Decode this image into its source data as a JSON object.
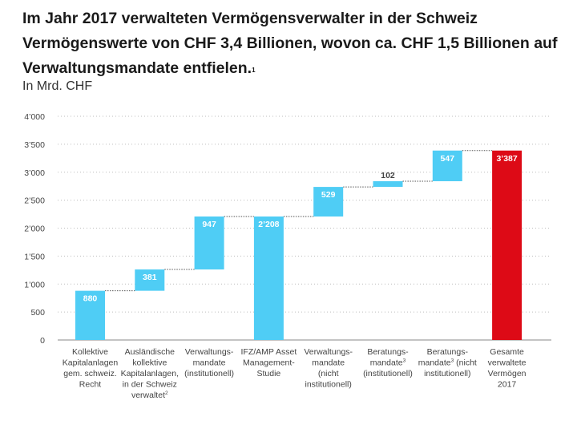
{
  "title": "Im Jahr 2017 verwalteten Vermögensverwalter in der Schweiz Vermögenswerte von CHF 3,4 Billionen, wovon ca. CHF 1,5 Billionen auf Verwaltungsmandate entfielen.",
  "title_footnote": "1",
  "subtitle": "In Mrd. CHF",
  "colors": {
    "bar": "#4fcdf5",
    "total": "#dd0a16",
    "grid": "#bdbdbd",
    "label_inside": "#ffffff",
    "label_outside": "#444444"
  },
  "chart_data": {
    "type": "bar",
    "subtype": "waterfall",
    "title": "",
    "xlabel": "",
    "ylabel": "In Mrd. CHF",
    "ylim": [
      0,
      4000
    ],
    "yticks": [
      0,
      500,
      1000,
      1500,
      2000,
      2500,
      3000,
      3500,
      4000
    ],
    "ytick_labels": [
      "0",
      "500",
      "1’000",
      "1’500",
      "2’000",
      "2’500",
      "3’000",
      "3’500",
      "4’000"
    ],
    "grid": true,
    "legend": "none",
    "categories": [
      [
        "Kollektive",
        "Kapitalanlagen",
        "gem. schweiz.",
        "Recht"
      ],
      [
        "Ausländische",
        "kollektive",
        "Kapitalanlagen,",
        "in der Schweiz",
        "verwaltet²"
      ],
      [
        "Verwaltungs-",
        "mandate",
        "(institutionell)"
      ],
      [
        "IFZ/AMP Asset",
        "Management-",
        "Studie"
      ],
      [
        "Verwaltungs-",
        "mandate",
        "(nicht",
        "institutionell)"
      ],
      [
        "Beratungs-",
        "mandate³",
        "(institutionell)"
      ],
      [
        "Beratungs-",
        "mandate³ (nicht",
        "institutionell)"
      ],
      [
        "Gesamte",
        "verwaltete",
        "Vermögen",
        "2017"
      ]
    ],
    "bars": [
      {
        "start": 0,
        "end": 880,
        "label": "880",
        "kind": "increment"
      },
      {
        "start": 880,
        "end": 1261,
        "label": "381",
        "kind": "increment"
      },
      {
        "start": 1261,
        "end": 2208,
        "label": "947",
        "kind": "increment"
      },
      {
        "start": 0,
        "end": 2208,
        "label": "2’208",
        "kind": "subtotal"
      },
      {
        "start": 2208,
        "end": 2737,
        "label": "529",
        "kind": "increment"
      },
      {
        "start": 2737,
        "end": 2839,
        "label": "102",
        "kind": "increment"
      },
      {
        "start": 2839,
        "end": 3387,
        "label": "547",
        "kind": "increment"
      },
      {
        "start": 0,
        "end": 3387,
        "label": "3’387",
        "kind": "total"
      }
    ]
  }
}
